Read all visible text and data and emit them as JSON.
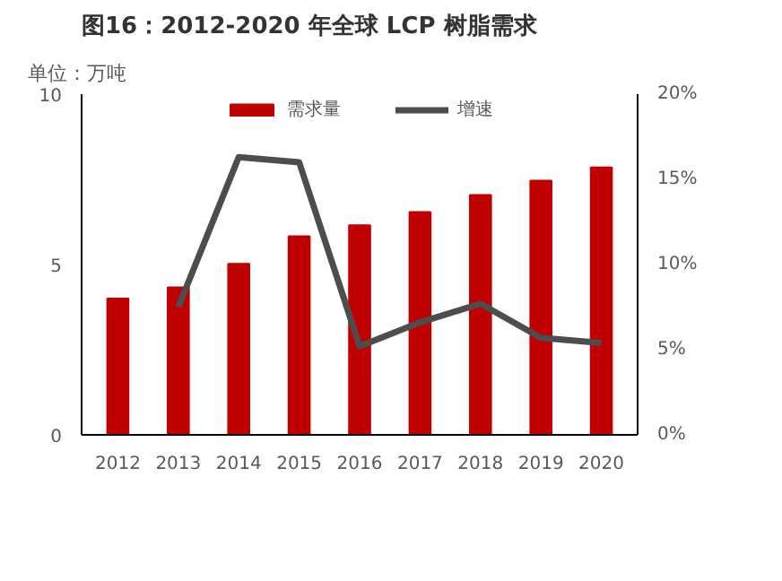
{
  "chart_data": {
    "type": "bar",
    "title": "图16：2012-2020 年全球 LCP 树脂需求",
    "ylabel": "单位：万吨",
    "categories": [
      "2012",
      "2013",
      "2014",
      "2015",
      "2016",
      "2017",
      "2018",
      "2019",
      "2020"
    ],
    "series": [
      {
        "name": "需求量",
        "color": "#c00000",
        "values": [
          4.0,
          4.33,
          5.02,
          5.83,
          6.15,
          6.54,
          7.04,
          7.46,
          7.85
        ]
      },
      {
        "name": "增速",
        "type": "line",
        "axis": "y2",
        "color": "#4d4d4d",
        "values": [
          null,
          7.5,
          16.3,
          16.0,
          5.2,
          6.6,
          7.7,
          5.7,
          5.4
        ]
      }
    ],
    "ylim": [
      0,
      10
    ],
    "yticks": [
      0,
      5,
      10
    ],
    "y2lim": [
      0,
      20
    ],
    "y2ticks": [
      {
        "value": 0,
        "label": "0%"
      },
      {
        "value": 5,
        "label": "5%"
      },
      {
        "value": 10,
        "label": "10%"
      },
      {
        "value": 15,
        "label": "15%"
      },
      {
        "value": 20,
        "label": "20%"
      }
    ],
    "grid": false,
    "legend": "top"
  }
}
